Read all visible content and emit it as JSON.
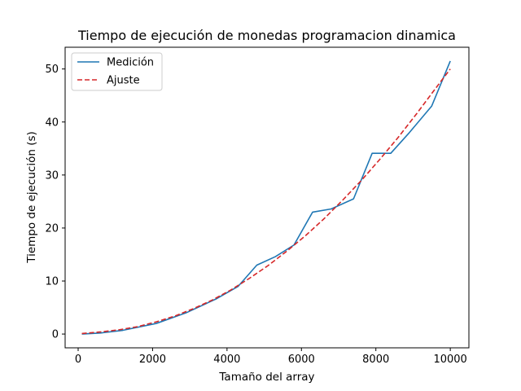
{
  "chart_data": {
    "type": "line",
    "title": "Tiempo de ejecución de monedas programacion dinamica",
    "xlabel": "Tamaño del array",
    "ylabel": "Tiempo de ejecución (s)",
    "xlim": [
      -350,
      10500
    ],
    "ylim": [
      -2.6,
      54.1
    ],
    "xticks": [
      0,
      2000,
      4000,
      6000,
      8000,
      10000
    ],
    "yticks": [
      0,
      10,
      20,
      30,
      40,
      50
    ],
    "grid": false,
    "legend_position": "top-left",
    "series": [
      {
        "name": "Medición",
        "color": "#1f77b4",
        "style": "solid",
        "x": [
          100,
          600,
          1200,
          2100,
          2900,
          3700,
          4300,
          4800,
          5300,
          5800,
          6300,
          6800,
          7400,
          7900,
          8400,
          8900,
          9500,
          10000
        ],
        "y": [
          0.0,
          0.2,
          0.7,
          2.0,
          4.0,
          6.6,
          9.0,
          13.0,
          14.6,
          16.8,
          23.0,
          23.6,
          25.5,
          34.1,
          34.1,
          38.0,
          43.0,
          51.5
        ]
      },
      {
        "name": "Ajuste",
        "color": "#d62728",
        "style": "dashed",
        "x": [
          100,
          600,
          1100,
          1600,
          2100,
          2600,
          3100,
          3600,
          4100,
          4600,
          5100,
          5600,
          6100,
          6600,
          7100,
          7600,
          8100,
          8600,
          9100,
          9600,
          10000
        ],
        "y": [
          0.1,
          0.4,
          0.8,
          1.4,
          2.3,
          3.4,
          4.8,
          6.4,
          8.3,
          10.5,
          12.9,
          15.6,
          18.5,
          21.7,
          25.2,
          28.9,
          32.9,
          37.1,
          41.6,
          46.3,
          50.0
        ]
      }
    ]
  }
}
